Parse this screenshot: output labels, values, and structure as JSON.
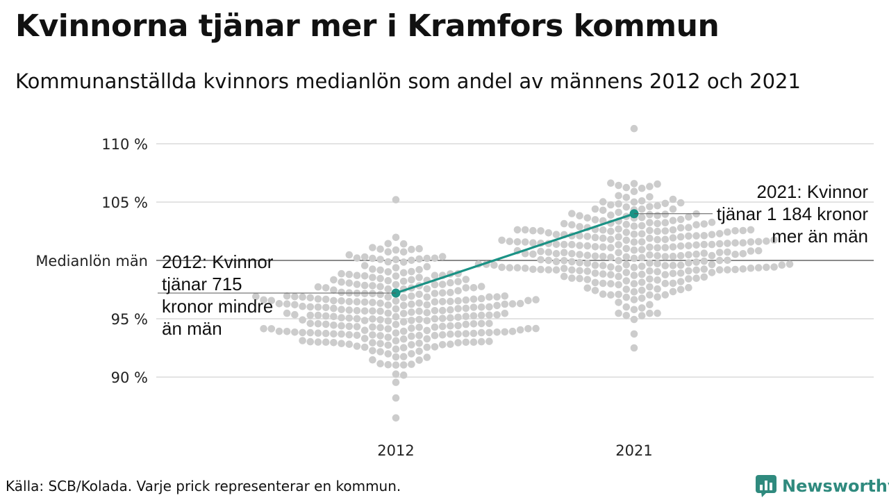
{
  "header": {
    "title": "Kvinnorna tjänar mer i Kramfors kommun",
    "subtitle": "Kommunanställda kvinnors medianlön som andel av männens 2012 och 2021"
  },
  "footer": {
    "source": "Källa: SCB/Kolada. Varje prick representerar en kommun.",
    "brand": "Newsworthy"
  },
  "colors": {
    "dots": "#cccccc",
    "highlight": "#1a9285",
    "grid": "#e3e3e3",
    "reference_line": "#444444",
    "brand": "#2f8a7e"
  },
  "icons": {
    "brand_logo": "chart-speech-bubble-icon"
  },
  "chart_data": {
    "type": "scatter",
    "subtype": "beeswarm",
    "categories": [
      "2012",
      "2021"
    ],
    "y_ticks": [
      {
        "value": 90,
        "label": "90 %"
      },
      {
        "value": 95,
        "label": "95 %"
      },
      {
        "value": 105,
        "label": "105 %"
      },
      {
        "value": 110,
        "label": "110 %"
      }
    ],
    "ylim": [
      86,
      111.5
    ],
    "reference_line": {
      "value": 100,
      "label": "Medianlön män"
    },
    "distributions": [
      {
        "category": "2012",
        "count": 290,
        "mean": 95.6,
        "sd": 2.6,
        "min": 86.5,
        "max": 105.2
      },
      {
        "category": "2021",
        "count": 290,
        "mean": 100.8,
        "sd": 2.6,
        "min": 92.5,
        "max": 111.3
      }
    ],
    "highlight": {
      "name": "Kramfors",
      "points": [
        {
          "x": "2012",
          "y": 97.2
        },
        {
          "x": "2021",
          "y": 104.0
        }
      ]
    },
    "annotations": [
      {
        "x": "2012",
        "y": 97.2,
        "lines": [
          "2012: Kvinnor",
          "tjänar 715",
          "kronor mindre",
          "än män"
        ]
      },
      {
        "x": "2021",
        "y": 104.0,
        "lines": [
          "2021: Kvinnor",
          "tjänar 1 184 kronor",
          "mer än män"
        ]
      }
    ],
    "grid": true,
    "legend": "none"
  }
}
